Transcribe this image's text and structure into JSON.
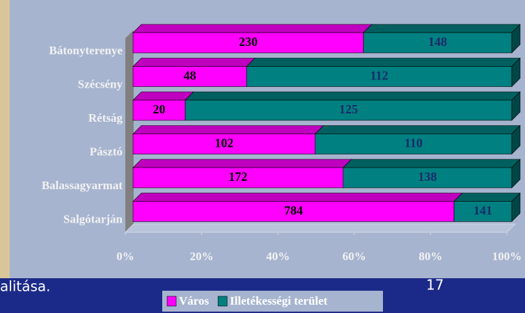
{
  "chart_data": {
    "type": "stacked_percent_bar_3d",
    "categories": [
      "Bátonyterenye",
      "Szécsény",
      "Rétság",
      "Pásztó",
      "Balassagyarmat",
      "Salgótarján"
    ],
    "series": [
      {
        "name": "Város",
        "color": "#ff00ff",
        "values": [
          230,
          48,
          20,
          102,
          172,
          784
        ]
      },
      {
        "name": "Illetékességi terület",
        "color": "#008080",
        "values": [
          148,
          112,
          125,
          110,
          138,
          141
        ]
      }
    ],
    "xlim": [
      0,
      100
    ],
    "xticks": [
      {
        "value": 0,
        "label": "0%"
      },
      {
        "value": 20,
        "label": "20%"
      },
      {
        "value": 40,
        "label": "40%"
      },
      {
        "value": 60,
        "label": "60%"
      },
      {
        "value": 80,
        "label": "80%"
      },
      {
        "value": 100,
        "label": "100%"
      }
    ],
    "legend": "bottom"
  },
  "footer": {
    "text": "alitása.",
    "page_number": "17"
  }
}
